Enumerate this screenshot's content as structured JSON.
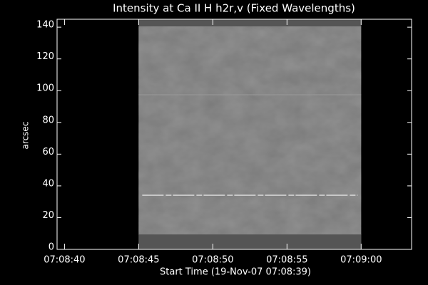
{
  "chart_data": {
    "type": "image",
    "title": "Intensity at Ca II H h2r,v (Fixed Wavelengths)",
    "x_label": "Start Time (19-Nov-07 07:08:39)",
    "y_label": "arcsec",
    "xlim": [
      25719.5,
      25743.4
    ],
    "xticks": [
      {
        "value": 25720,
        "label": "07:08:40"
      },
      {
        "value": 25725,
        "label": "07:08:45"
      },
      {
        "value": 25730,
        "label": "07:08:50"
      },
      {
        "value": 25735,
        "label": "07:08:55"
      },
      {
        "value": 25740,
        "label": "07:09:00"
      }
    ],
    "ylim": [
      0,
      145
    ],
    "yticks": [
      0,
      20,
      40,
      60,
      80,
      100,
      120,
      140
    ],
    "image_x": [
      25725,
      25740
    ],
    "image_y": [
      0,
      145
    ]
  }
}
